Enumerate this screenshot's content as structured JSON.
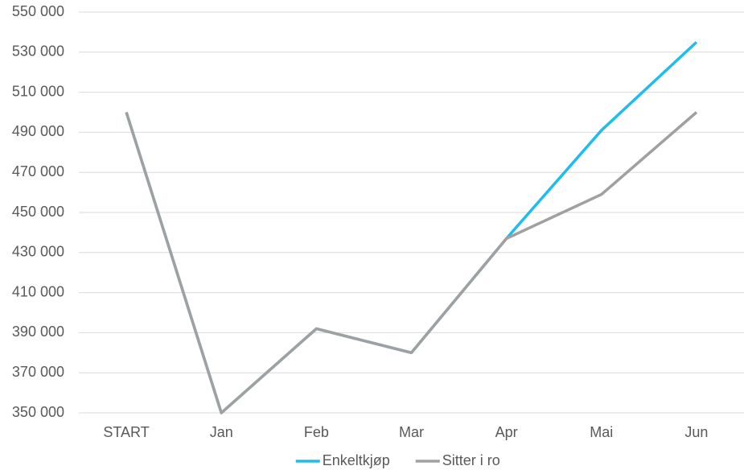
{
  "chart_data": {
    "type": "line",
    "categories": [
      "START",
      "Jan",
      "Feb",
      "Mar",
      "Apr",
      "Mai",
      "Jun"
    ],
    "series": [
      {
        "name": "Enkeltkjøp",
        "color": "#1fbcef",
        "values": [
          500000,
          350000,
          392000,
          380000,
          437000,
          491000,
          535000
        ]
      },
      {
        "name": "Sitter i ro",
        "color": "#a0a0a0",
        "values": [
          500000,
          350000,
          392000,
          380000,
          437000,
          459000,
          500000
        ]
      }
    ],
    "ylim": [
      350000,
      550000
    ],
    "yticks": [
      {
        "value": 350000,
        "label": "350 000"
      },
      {
        "value": 370000,
        "label": "370 000"
      },
      {
        "value": 390000,
        "label": "390 000"
      },
      {
        "value": 410000,
        "label": "410 000"
      },
      {
        "value": 430000,
        "label": "430 000"
      },
      {
        "value": 450000,
        "label": "450 000"
      },
      {
        "value": 470000,
        "label": "470 000"
      },
      {
        "value": 490000,
        "label": "490 000"
      },
      {
        "value": 510000,
        "label": "510 000"
      },
      {
        "value": 530000,
        "label": "530 000"
      },
      {
        "value": 550000,
        "label": "550 000"
      }
    ],
    "grid": true,
    "legend": "bottom"
  }
}
